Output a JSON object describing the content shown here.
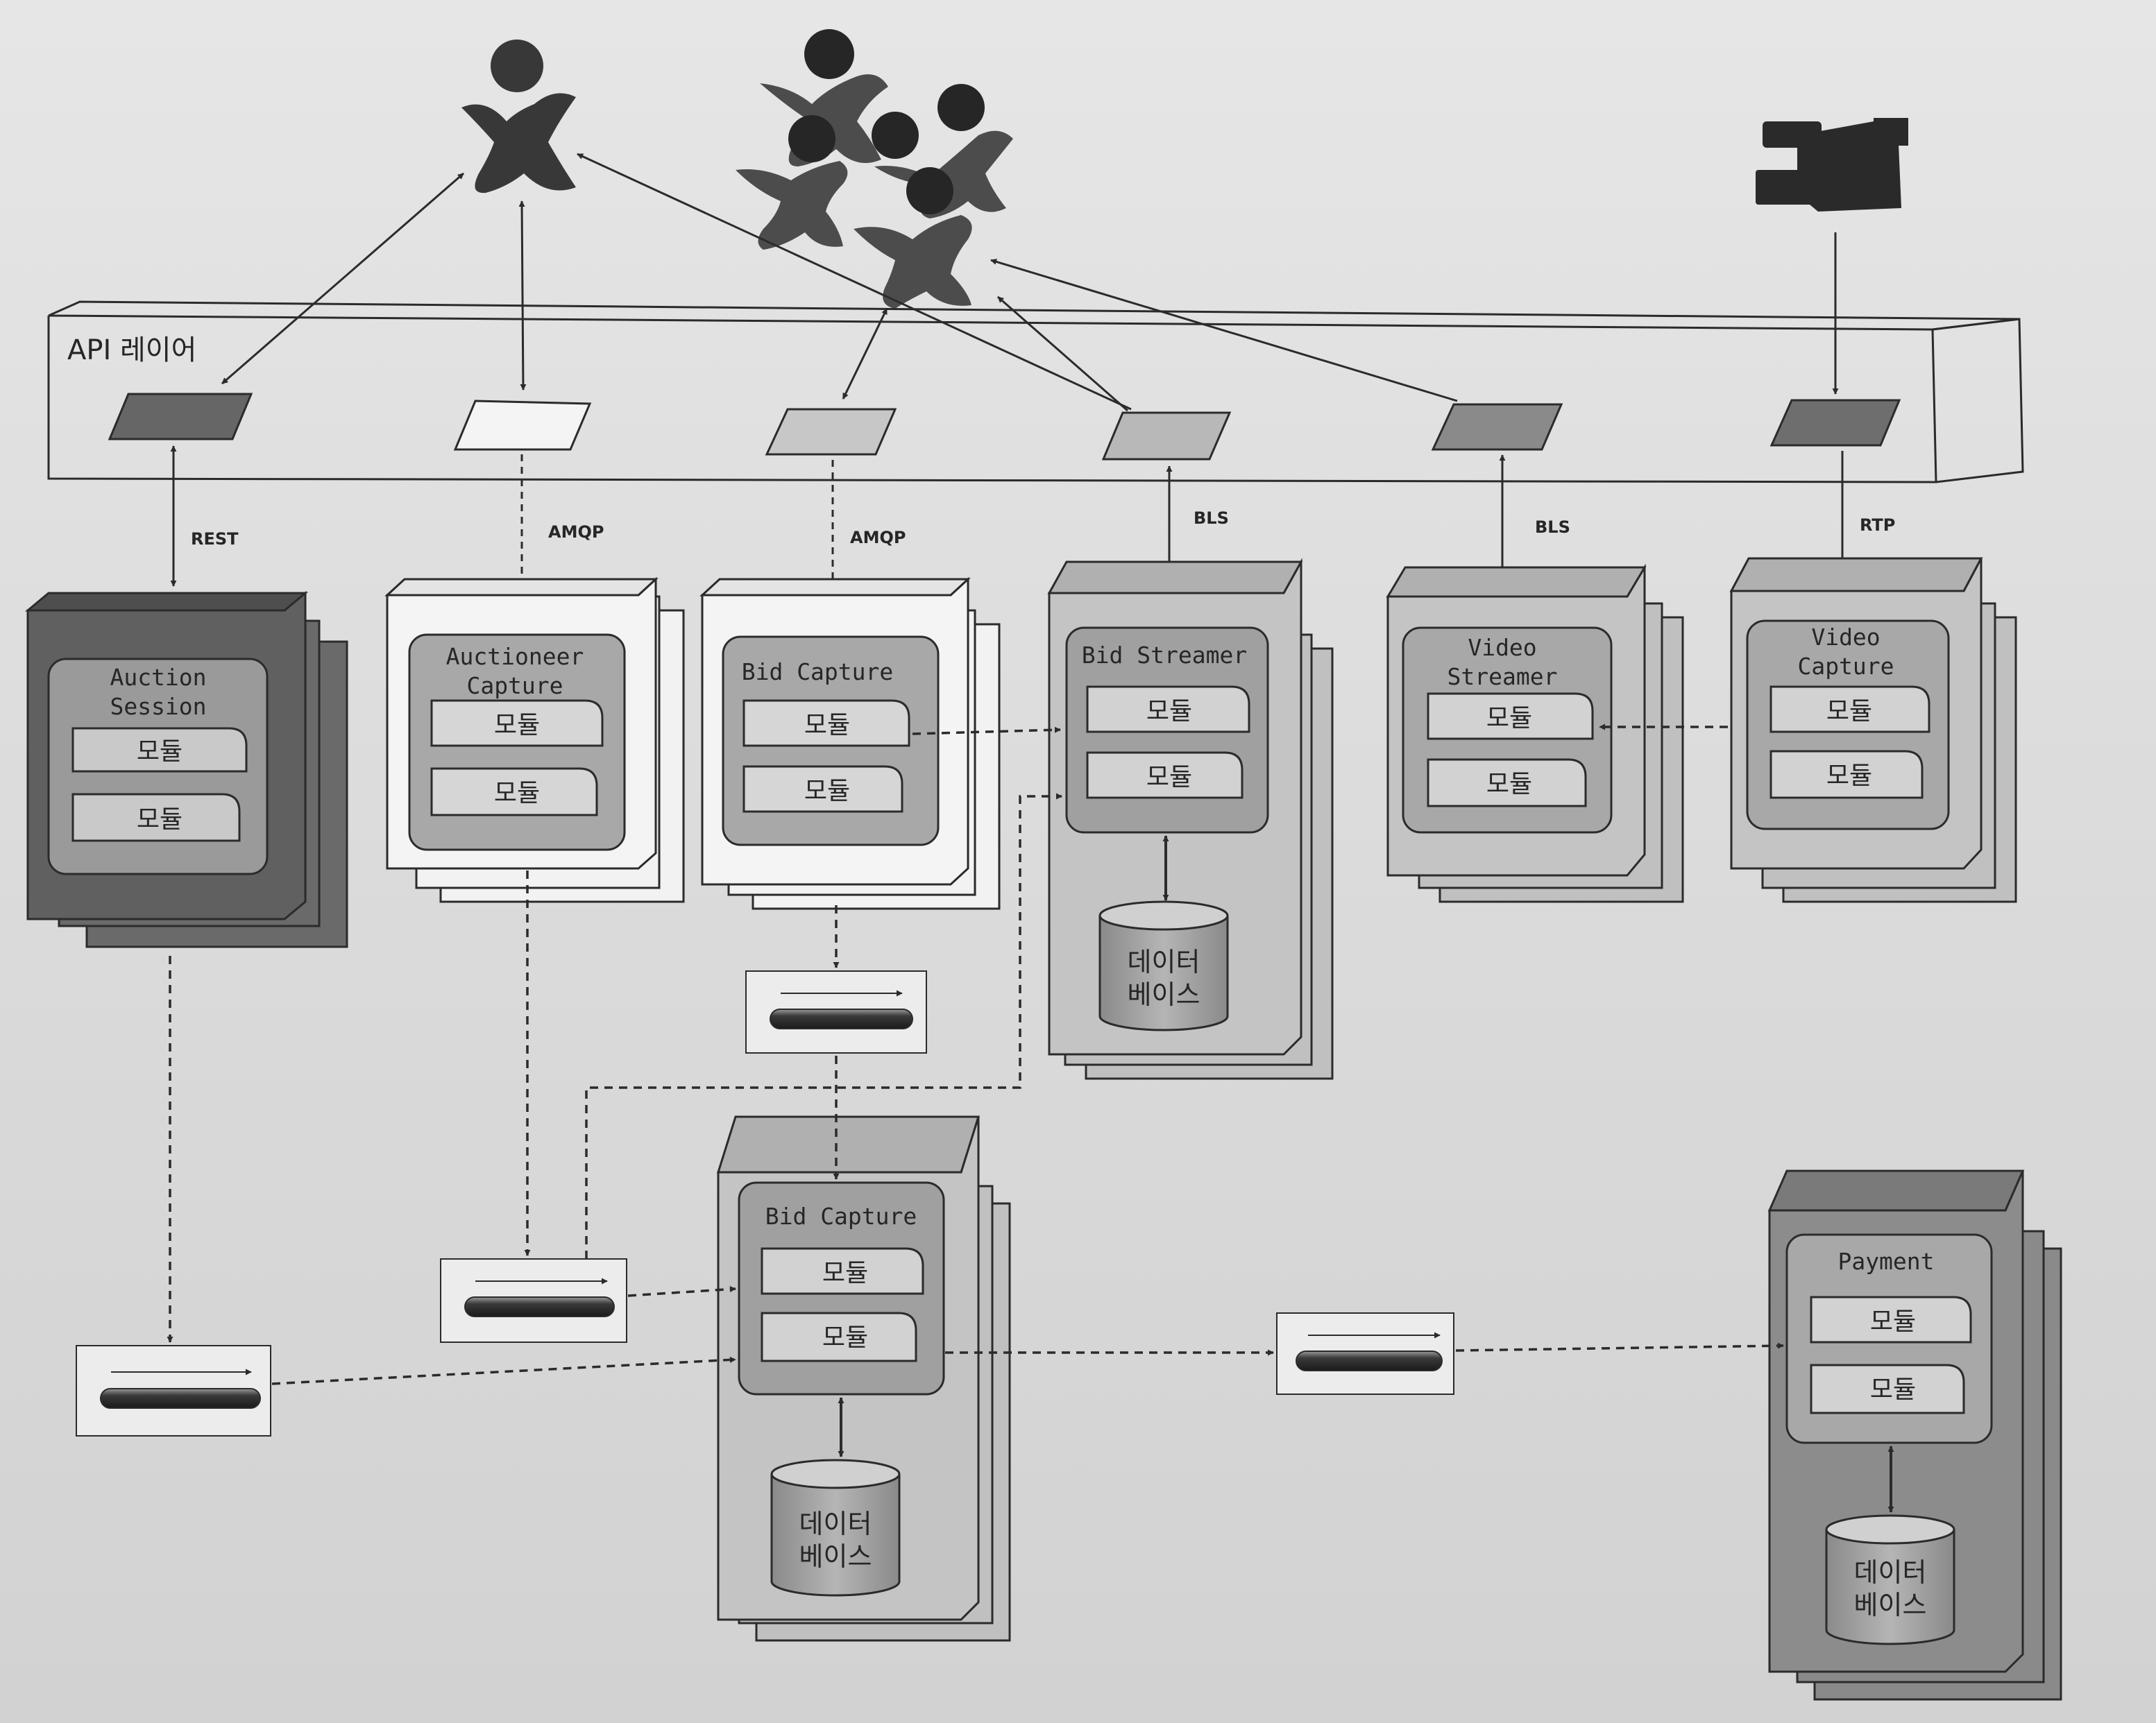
{
  "api_layer": {
    "title": "API 레이어",
    "gateways": [
      {
        "name": "gateway-auction-session",
        "protocol": "REST"
      },
      {
        "name": "gateway-auctioneer-capture",
        "protocol": "AMQP"
      },
      {
        "name": "gateway-bid-capture",
        "protocol": "AMQP"
      },
      {
        "name": "gateway-bid-streamer",
        "protocol": "BLS"
      },
      {
        "name": "gateway-video-streamer",
        "protocol": "BLS"
      },
      {
        "name": "gateway-video-capture",
        "protocol": "RTP"
      }
    ]
  },
  "actors": {
    "auctioneer": "auctioneer",
    "bidders": "bidders",
    "camera": "video camera"
  },
  "services": {
    "auction_session": {
      "title_1": "Auction",
      "title_2": "Session",
      "modules": [
        "모듈",
        "모듈"
      ]
    },
    "auctioneer_capture": {
      "title_1": "Auctioneer",
      "title_2": "Capture",
      "modules": [
        "모듈",
        "모듈"
      ]
    },
    "bid_capture_top": {
      "title_1": "Bid Capture",
      "modules": [
        "모듈",
        "모듈"
      ]
    },
    "bid_streamer": {
      "title_1": "Bid Streamer",
      "modules": [
        "모듈",
        "모듈"
      ],
      "db_1": "데이터",
      "db_2": "베이스"
    },
    "video_streamer": {
      "title_1": "Video",
      "title_2": "Streamer",
      "modules": [
        "모듈",
        "모듈"
      ]
    },
    "video_capture": {
      "title_1": "Video",
      "title_2": "Capture",
      "modules": [
        "모듈",
        "모듈"
      ]
    },
    "bid_capture_bottom": {
      "title_1": "Bid Capture",
      "modules": [
        "모듈",
        "모듈"
      ],
      "db_1": "데이터",
      "db_2": "베이스"
    },
    "payment": {
      "title_1": "Payment",
      "modules": [
        "모듈",
        "모듈"
      ],
      "db_1": "데이터",
      "db_2": "베이스"
    }
  },
  "colors": {
    "dark_service": "#6a6a6a",
    "mid_service": "#b4b4b4",
    "light_service": "#f2f2f2",
    "line": "#2b2b2b"
  }
}
